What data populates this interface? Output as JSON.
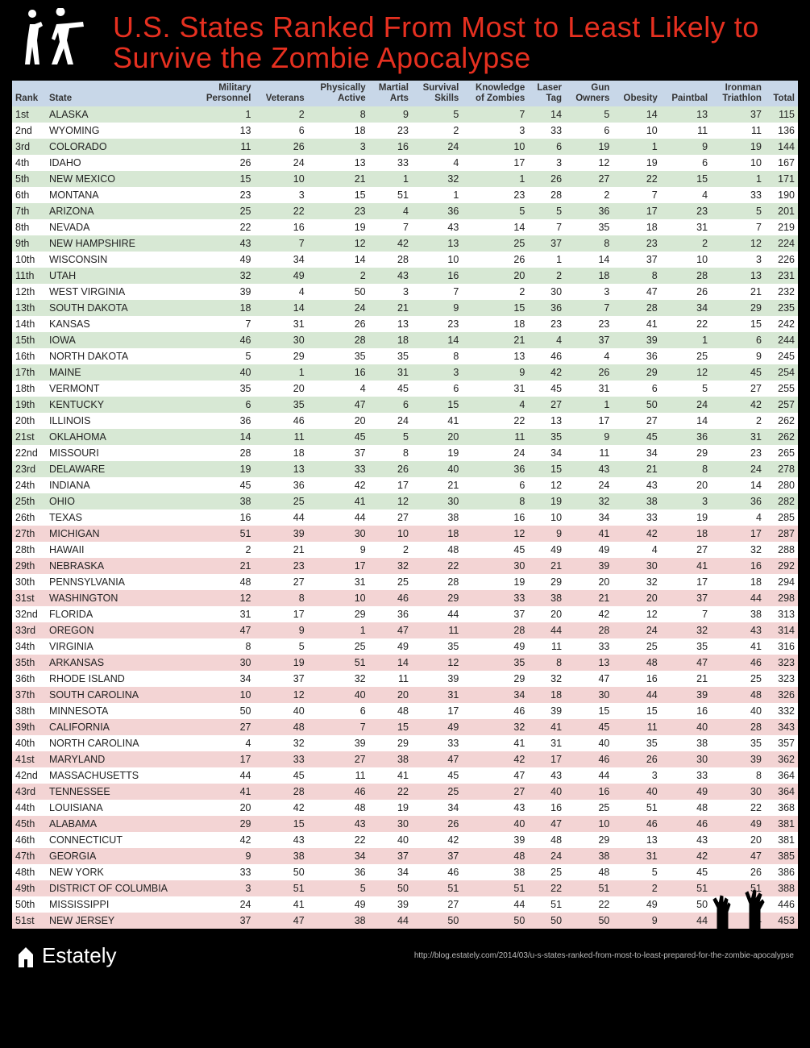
{
  "title": "U.S. States Ranked From Most to Least Likely to Survive the Zombie Apocalypse",
  "brand": "Estately",
  "source_url": "http://blog.estately.com/2014/03/u-s-states-ranked-from-most-to-least-prepared-for-the-zombie-apocalypse",
  "columns": [
    {
      "label1": "",
      "label2": "Rank",
      "align": "left"
    },
    {
      "label1": "",
      "label2": "State",
      "align": "left"
    },
    {
      "label1": "Military",
      "label2": "Personnel",
      "align": "right"
    },
    {
      "label1": "",
      "label2": "Veterans",
      "align": "right"
    },
    {
      "label1": "Physically",
      "label2": "Active",
      "align": "right"
    },
    {
      "label1": "Martial",
      "label2": "Arts",
      "align": "right"
    },
    {
      "label1": "Survival",
      "label2": "Skills",
      "align": "right"
    },
    {
      "label1": "Knowledge",
      "label2": "of Zombies",
      "align": "right"
    },
    {
      "label1": "Laser",
      "label2": "Tag",
      "align": "right"
    },
    {
      "label1": "Gun",
      "label2": "Owners",
      "align": "right"
    },
    {
      "label1": "",
      "label2": "Obesity",
      "align": "right"
    },
    {
      "label1": "",
      "label2": "Paintbal",
      "align": "right"
    },
    {
      "label1": "Ironman",
      "label2": "Triathlon",
      "align": "right"
    },
    {
      "label1": "",
      "label2": "Total",
      "align": "right"
    }
  ],
  "rows": [
    {
      "rank": "1st",
      "state": "ALASKA",
      "v": [
        1,
        2,
        8,
        9,
        5,
        7,
        14,
        5,
        14,
        13,
        37,
        115
      ]
    },
    {
      "rank": "2nd",
      "state": "WYOMING",
      "v": [
        13,
        6,
        18,
        23,
        2,
        3,
        33,
        6,
        10,
        11,
        11,
        136
      ]
    },
    {
      "rank": "3rd",
      "state": "COLORADO",
      "v": [
        11,
        26,
        3,
        16,
        24,
        10,
        6,
        19,
        1,
        9,
        19,
        144
      ]
    },
    {
      "rank": "4th",
      "state": "IDAHO",
      "v": [
        26,
        24,
        13,
        33,
        4,
        17,
        3,
        12,
        19,
        6,
        10,
        167
      ]
    },
    {
      "rank": "5th",
      "state": "NEW MEXICO",
      "v": [
        15,
        10,
        21,
        1,
        32,
        1,
        26,
        27,
        22,
        15,
        1,
        171
      ]
    },
    {
      "rank": "6th",
      "state": "MONTANA",
      "v": [
        23,
        3,
        15,
        51,
        1,
        23,
        28,
        2,
        7,
        4,
        33,
        190
      ]
    },
    {
      "rank": "7th",
      "state": "ARIZONA",
      "v": [
        25,
        22,
        23,
        4,
        36,
        5,
        5,
        36,
        17,
        23,
        5,
        201
      ]
    },
    {
      "rank": "8th",
      "state": "NEVADA",
      "v": [
        22,
        16,
        19,
        7,
        43,
        14,
        7,
        35,
        18,
        31,
        7,
        219
      ]
    },
    {
      "rank": "9th",
      "state": "NEW HAMPSHIRE",
      "v": [
        43,
        7,
        12,
        42,
        13,
        25,
        37,
        8,
        23,
        2,
        12,
        224
      ]
    },
    {
      "rank": "10th",
      "state": "WISCONSIN",
      "v": [
        49,
        34,
        14,
        28,
        10,
        26,
        1,
        14,
        37,
        10,
        3,
        226
      ]
    },
    {
      "rank": "11th",
      "state": "UTAH",
      "v": [
        32,
        49,
        2,
        43,
        16,
        20,
        2,
        18,
        8,
        28,
        13,
        231
      ]
    },
    {
      "rank": "12th",
      "state": "WEST VIRGINIA",
      "v": [
        39,
        4,
        50,
        3,
        7,
        2,
        30,
        3,
        47,
        26,
        21,
        232
      ]
    },
    {
      "rank": "13th",
      "state": "SOUTH DAKOTA",
      "v": [
        18,
        14,
        24,
        21,
        9,
        15,
        36,
        7,
        28,
        34,
        29,
        235
      ]
    },
    {
      "rank": "14th",
      "state": "KANSAS",
      "v": [
        7,
        31,
        26,
        13,
        23,
        18,
        23,
        23,
        41,
        22,
        15,
        242
      ]
    },
    {
      "rank": "15th",
      "state": "IOWA",
      "v": [
        46,
        30,
        28,
        18,
        14,
        21,
        4,
        37,
        39,
        1,
        6,
        244
      ]
    },
    {
      "rank": "16th",
      "state": "NORTH DAKOTA",
      "v": [
        5,
        29,
        35,
        35,
        8,
        13,
        46,
        4,
        36,
        25,
        9,
        245
      ]
    },
    {
      "rank": "17th",
      "state": "MAINE",
      "v": [
        40,
        1,
        16,
        31,
        3,
        9,
        42,
        26,
        29,
        12,
        45,
        254
      ]
    },
    {
      "rank": "18th",
      "state": "VERMONT",
      "v": [
        35,
        20,
        4,
        45,
        6,
        31,
        45,
        31,
        6,
        5,
        27,
        255
      ]
    },
    {
      "rank": "19th",
      "state": "KENTUCKY",
      "v": [
        6,
        35,
        47,
        6,
        15,
        4,
        27,
        1,
        50,
        24,
        42,
        257
      ]
    },
    {
      "rank": "20th",
      "state": "ILLINOIS",
      "v": [
        36,
        46,
        20,
        24,
        41,
        22,
        13,
        17,
        27,
        14,
        2,
        262
      ]
    },
    {
      "rank": "21st",
      "state": "OKLAHOMA",
      "v": [
        14,
        11,
        45,
        5,
        20,
        11,
        35,
        9,
        45,
        36,
        31,
        262
      ]
    },
    {
      "rank": "22nd",
      "state": "MISSOURI",
      "v": [
        28,
        18,
        37,
        8,
        19,
        24,
        34,
        11,
        34,
        29,
        23,
        265
      ]
    },
    {
      "rank": "23rd",
      "state": "DELAWARE",
      "v": [
        19,
        13,
        33,
        26,
        40,
        36,
        15,
        43,
        21,
        8,
        24,
        278
      ]
    },
    {
      "rank": "24th",
      "state": "INDIANA",
      "v": [
        45,
        36,
        42,
        17,
        21,
        6,
        12,
        24,
        43,
        20,
        14,
        280
      ]
    },
    {
      "rank": "25th",
      "state": "OHIO",
      "v": [
        38,
        25,
        41,
        12,
        30,
        8,
        19,
        32,
        38,
        3,
        36,
        282
      ]
    },
    {
      "rank": "26th",
      "state": "TEXAS",
      "v": [
        16,
        44,
        44,
        27,
        38,
        16,
        10,
        34,
        33,
        19,
        4,
        285
      ]
    },
    {
      "rank": "27th",
      "state": "MICHIGAN",
      "v": [
        51,
        39,
        30,
        10,
        18,
        12,
        9,
        41,
        42,
        18,
        17,
        287
      ]
    },
    {
      "rank": "28th",
      "state": "HAWAII",
      "v": [
        2,
        21,
        9,
        2,
        48,
        45,
        49,
        49,
        4,
        27,
        32,
        288
      ]
    },
    {
      "rank": "29th",
      "state": "NEBRASKA",
      "v": [
        21,
        23,
        17,
        32,
        22,
        30,
        21,
        39,
        30,
        41,
        16,
        292
      ]
    },
    {
      "rank": "30th",
      "state": "PENNSYLVANIA",
      "v": [
        48,
        27,
        31,
        25,
        28,
        19,
        29,
        20,
        32,
        17,
        18,
        294
      ]
    },
    {
      "rank": "31st",
      "state": "WASHINGTON",
      "v": [
        12,
        8,
        10,
        46,
        29,
        33,
        38,
        21,
        20,
        37,
        44,
        298
      ]
    },
    {
      "rank": "32nd",
      "state": "FLORIDA",
      "v": [
        31,
        17,
        29,
        36,
        44,
        37,
        20,
        42,
        12,
        7,
        38,
        313
      ]
    },
    {
      "rank": "33rd",
      "state": "OREGON",
      "v": [
        47,
        9,
        1,
        47,
        11,
        28,
        44,
        28,
        24,
        32,
        43,
        314
      ]
    },
    {
      "rank": "34th",
      "state": "VIRGINIA",
      "v": [
        8,
        5,
        25,
        49,
        35,
        49,
        11,
        33,
        25,
        35,
        41,
        316
      ]
    },
    {
      "rank": "35th",
      "state": "ARKANSAS",
      "v": [
        30,
        19,
        51,
        14,
        12,
        35,
        8,
        13,
        48,
        47,
        46,
        323
      ]
    },
    {
      "rank": "36th",
      "state": "RHODE ISLAND",
      "v": [
        34,
        37,
        32,
        11,
        39,
        29,
        32,
        47,
        16,
        21,
        25,
        323
      ]
    },
    {
      "rank": "37th",
      "state": "SOUTH CAROLINA",
      "v": [
        10,
        12,
        40,
        20,
        31,
        34,
        18,
        30,
        44,
        39,
        48,
        326
      ]
    },
    {
      "rank": "38th",
      "state": "MINNESOTA",
      "v": [
        50,
        40,
        6,
        48,
        17,
        46,
        39,
        15,
        15,
        16,
        40,
        332
      ]
    },
    {
      "rank": "39th",
      "state": "CALIFORNIA",
      "v": [
        27,
        48,
        7,
        15,
        49,
        32,
        41,
        45,
        11,
        40,
        28,
        343
      ]
    },
    {
      "rank": "40th",
      "state": "NORTH CAROLINA",
      "v": [
        4,
        32,
        39,
        29,
        33,
        41,
        31,
        40,
        35,
        38,
        35,
        357
      ]
    },
    {
      "rank": "41st",
      "state": "MARYLAND",
      "v": [
        17,
        33,
        27,
        38,
        47,
        42,
        17,
        46,
        26,
        30,
        39,
        362
      ]
    },
    {
      "rank": "42nd",
      "state": "MASSACHUSETTS",
      "v": [
        44,
        45,
        11,
        41,
        45,
        47,
        43,
        44,
        3,
        33,
        8,
        364
      ]
    },
    {
      "rank": "43rd",
      "state": "TENNESSEE",
      "v": [
        41,
        28,
        46,
        22,
        25,
        27,
        40,
        16,
        40,
        49,
        30,
        364
      ]
    },
    {
      "rank": "44th",
      "state": "LOUISIANA",
      "v": [
        20,
        42,
        48,
        19,
        34,
        43,
        16,
        25,
        51,
        48,
        22,
        368
      ]
    },
    {
      "rank": "45th",
      "state": "ALABAMA",
      "v": [
        29,
        15,
        43,
        30,
        26,
        40,
        47,
        10,
        46,
        46,
        49,
        381
      ]
    },
    {
      "rank": "46th",
      "state": "CONNECTICUT",
      "v": [
        42,
        43,
        22,
        40,
        42,
        39,
        48,
        29,
        13,
        43,
        20,
        381
      ]
    },
    {
      "rank": "47th",
      "state": "GEORGIA",
      "v": [
        9,
        38,
        34,
        37,
        37,
        48,
        24,
        38,
        31,
        42,
        47,
        385
      ]
    },
    {
      "rank": "48th",
      "state": "NEW YORK",
      "v": [
        33,
        50,
        36,
        34,
        46,
        38,
        25,
        48,
        5,
        45,
        26,
        386
      ]
    },
    {
      "rank": "49th",
      "state": "DISTRICT OF COLUMBIA",
      "v": [
        3,
        51,
        5,
        50,
        51,
        51,
        22,
        51,
        2,
        51,
        51,
        388
      ]
    },
    {
      "rank": "50th",
      "state": "MISSISSIPPI",
      "v": [
        24,
        41,
        49,
        39,
        27,
        44,
        51,
        22,
        49,
        50,
        50,
        446
      ]
    },
    {
      "rank": "51st",
      "state": "NEW JERSEY",
      "v": [
        37,
        47,
        38,
        44,
        50,
        50,
        50,
        50,
        9,
        44,
        34,
        453
      ]
    }
  ],
  "styling": {
    "top_band_color": "#d7e8d4",
    "bottom_band_color": "#f3d4d4",
    "header_bg": "#c8d7e8",
    "title_color": "#e63020",
    "split_at": 26
  }
}
